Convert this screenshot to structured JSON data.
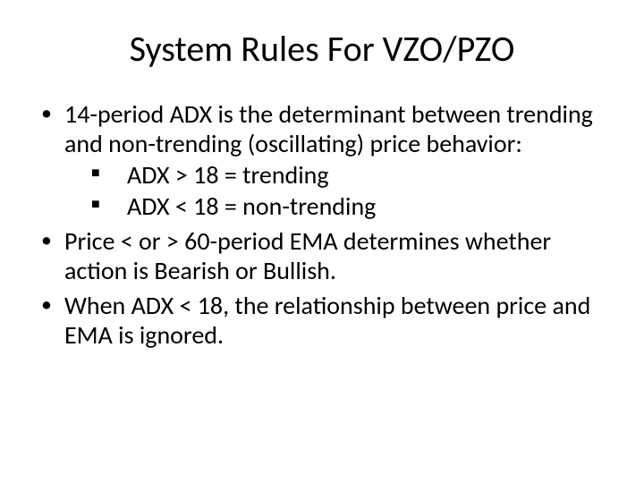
{
  "title": "System Rules For VZO/PZO",
  "bullets": {
    "b1": "14-period ADX is the determinant between trending and non-trending (oscillating) price behavior:",
    "b1_sub1": "ADX > 18 = trending",
    "b1_sub2": "ADX < 18 = non-trending",
    "b2": "Price < or > 60-period EMA determines whether action is Bearish or Bullish.",
    "b3": "When ADX < 18, the relationship between price and EMA is ignored."
  },
  "colors": {
    "background": "#ffffff",
    "text": "#000000"
  },
  "typography": {
    "title_fontsize": 40,
    "body_fontsize": 28,
    "font_family": "Calibri"
  }
}
